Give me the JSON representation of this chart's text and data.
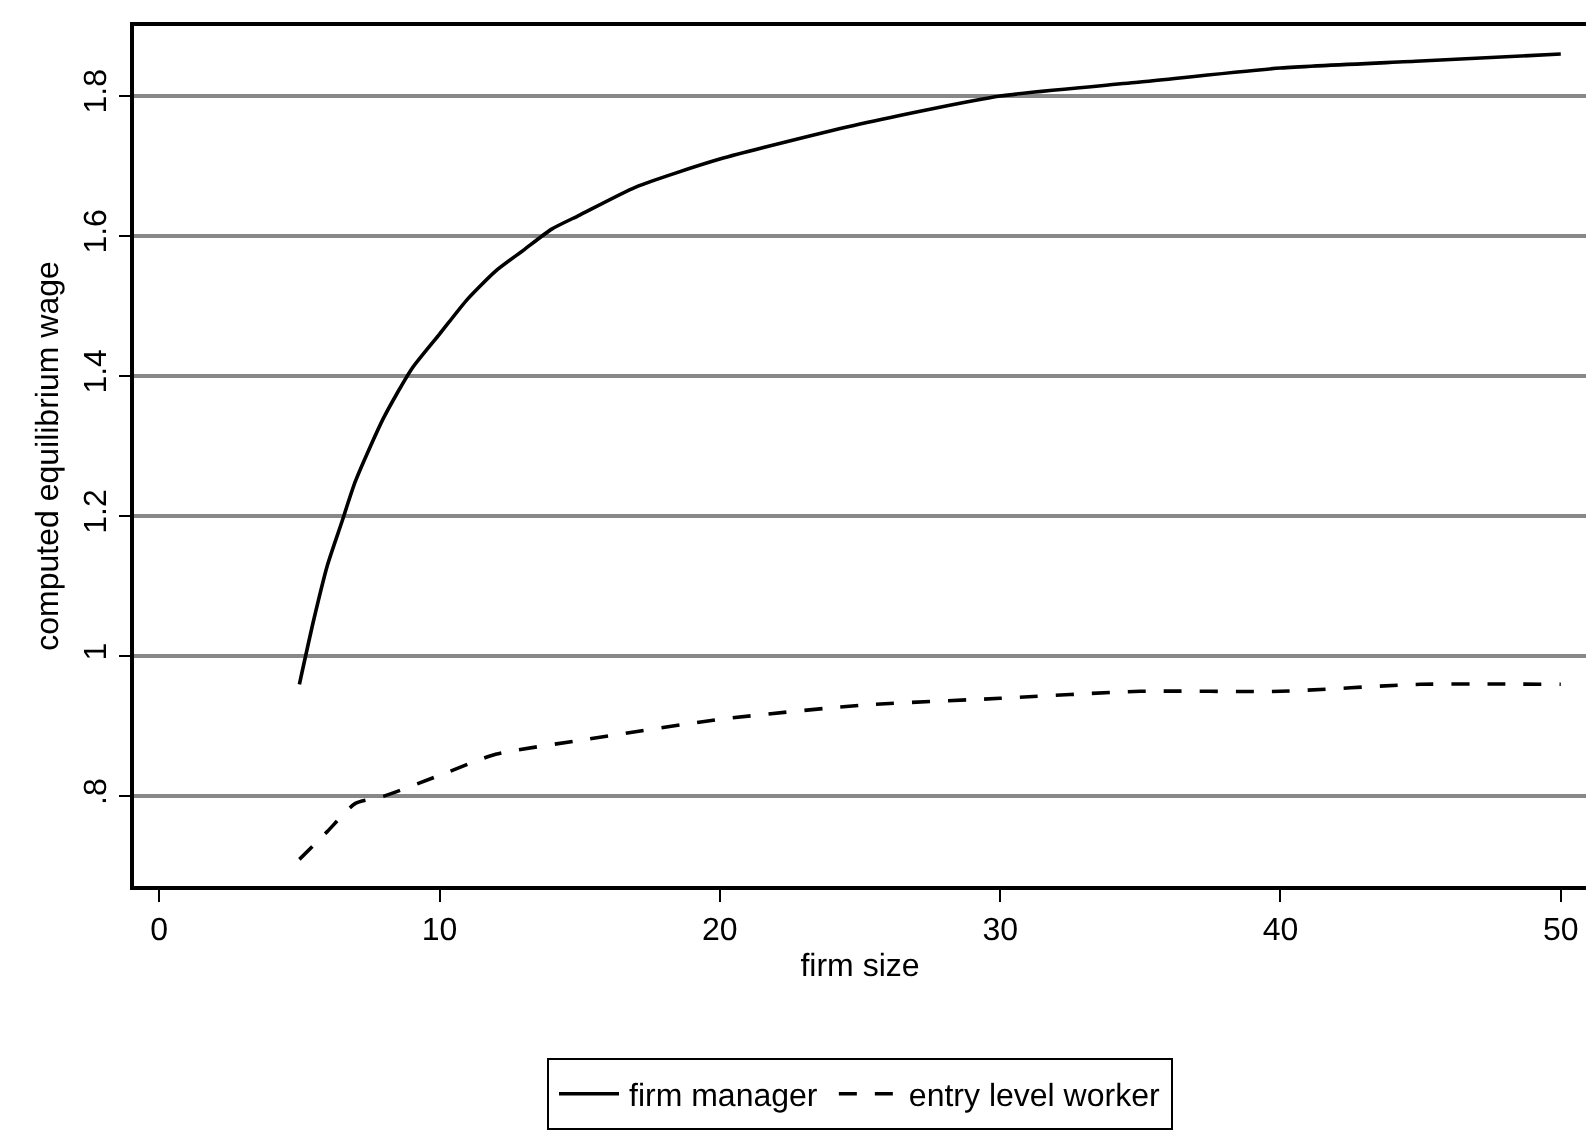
{
  "chart_data": {
    "type": "line",
    "xlabel": "firm size",
    "ylabel": "computed equilibrium wage",
    "xlim": [
      -0.9,
      50.9
    ],
    "xticks": [
      0,
      10,
      20,
      30,
      40,
      50
    ],
    "ylim": [
      0.672,
      1.9
    ],
    "yticks": [
      {
        "value": 0.8,
        "label": ".8"
      },
      1,
      1.2,
      1.4,
      1.6,
      1.8
    ],
    "grid": "y",
    "legend": "bottom",
    "marker": "none",
    "series": [
      {
        "name": "firm manager",
        "color": "#000000",
        "line_style": "solid",
        "x": [
          5,
          5.5,
          6,
          6.5,
          7,
          8,
          9,
          10,
          11,
          12,
          13,
          14,
          15,
          17,
          20,
          25,
          30,
          35,
          40,
          45,
          50
        ],
        "values": [
          0.96,
          1.05,
          1.13,
          1.19,
          1.25,
          1.34,
          1.41,
          1.46,
          1.51,
          1.55,
          1.58,
          1.61,
          1.63,
          1.67,
          1.71,
          1.76,
          1.8,
          1.82,
          1.84,
          1.85,
          1.86
        ]
      },
      {
        "name": "entry level worker",
        "color": "#000000",
        "line_style": "dashed",
        "x": [
          5,
          6,
          7,
          8,
          10,
          12,
          15,
          20,
          25,
          30,
          35,
          40,
          45,
          50
        ],
        "values": [
          0.71,
          0.75,
          0.79,
          0.8,
          0.83,
          0.86,
          0.88,
          0.91,
          0.93,
          0.94,
          0.95,
          0.95,
          0.96,
          0.96
        ]
      }
    ]
  }
}
